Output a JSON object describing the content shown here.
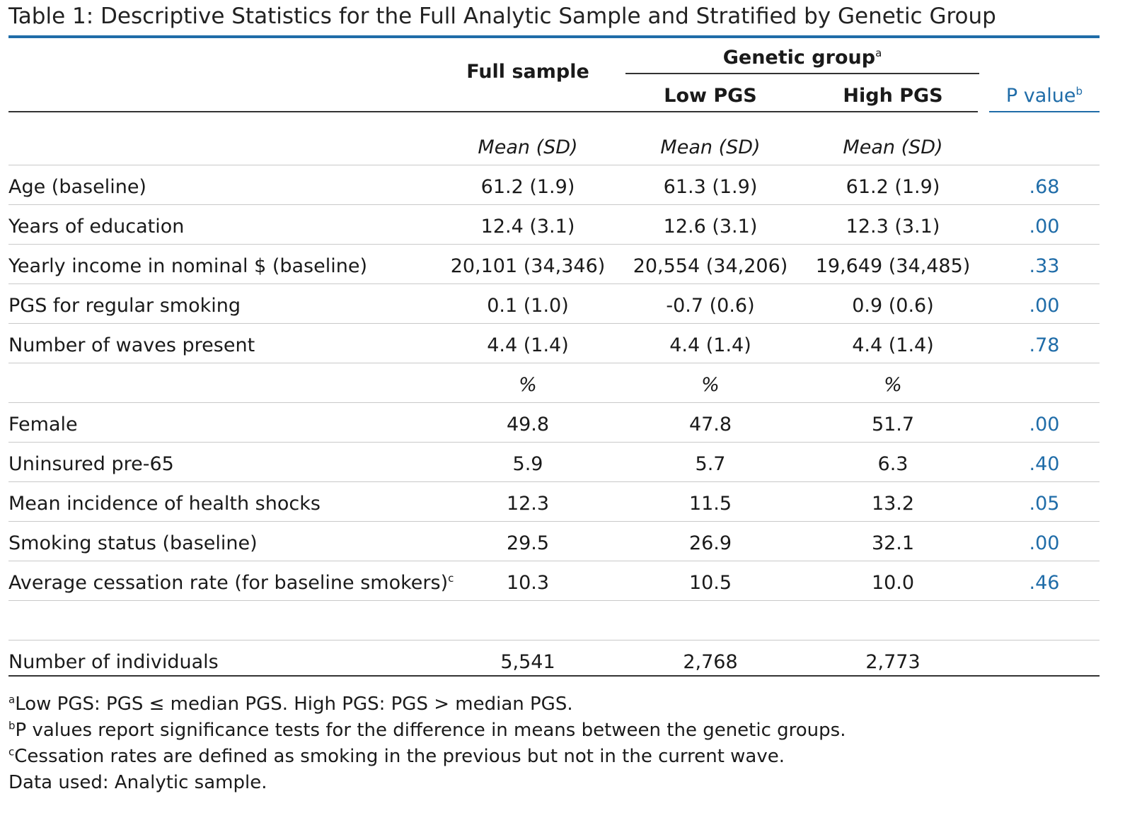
{
  "title": "Table 1: Descriptive Statistics for the Full Analytic Sample and Stratified by Genetic Group",
  "header": {
    "full_sample": "Full sample",
    "genetic_group": "Genetic group",
    "genetic_group_sup": "a",
    "low_pgs": "Low PGS",
    "high_pgs": "High PGS",
    "p_value": "P value",
    "p_value_sup": "b"
  },
  "subheaders": {
    "mean_sd": "Mean (SD)",
    "percent": "%"
  },
  "mean_rows": [
    {
      "label": "Age (baseline)",
      "full": "61.2 (1.9)",
      "low": "61.3 (1.9)",
      "high": "61.2 (1.9)",
      "p": ".68"
    },
    {
      "label": "Years of education",
      "full": "12.4 (3.1)",
      "low": "12.6 (3.1)",
      "high": "12.3 (3.1)",
      "p": ".00"
    },
    {
      "label": "Yearly income in nominal $ (baseline)",
      "full": "20,101 (34,346)",
      "low": "20,554 (34,206)",
      "high": "19,649 (34,485)",
      "p": ".33"
    },
    {
      "label": "PGS for regular smoking",
      "full": "0.1 (1.0)",
      "low": "-0.7 (0.6)",
      "high": "0.9 (0.6)",
      "p": ".00"
    },
    {
      "label": "Number of waves present",
      "full": "4.4 (1.4)",
      "low": "4.4 (1.4)",
      "high": "4.4 (1.4)",
      "p": ".78"
    }
  ],
  "pct_rows": [
    {
      "label": "Female",
      "full": "49.8",
      "low": "47.8",
      "high": "51.7",
      "p": ".00"
    },
    {
      "label": "Uninsured pre-65",
      "full": "5.9",
      "low": "5.7",
      "high": "6.3",
      "p": ".40"
    },
    {
      "label": "Mean incidence of health shocks",
      "full": "12.3",
      "low": "11.5",
      "high": "13.2",
      "p": ".05"
    },
    {
      "label": "Smoking status (baseline)",
      "full": "29.5",
      "low": "26.9",
      "high": "32.1",
      "p": ".00"
    },
    {
      "label": "Average cessation rate (for baseline smokers)",
      "label_sup": "c",
      "full": "10.3",
      "low": "10.5",
      "high": "10.0",
      "p": ".46"
    }
  ],
  "n_row": {
    "label": "Number of individuals",
    "full": "5,541",
    "low": "2,768",
    "high": "2,773"
  },
  "notes": [
    {
      "sup": "a",
      "text": "Low PGS: PGS ≤ median PGS. High PGS: PGS > median PGS."
    },
    {
      "sup": "b",
      "text": "P values report significance tests for the difference in means between the genetic groups."
    },
    {
      "sup": "c",
      "text": "Cessation rates are defined as smoking in the previous but not in the current wave."
    },
    {
      "sup": "",
      "text": "Data used: Analytic sample."
    }
  ],
  "colors": {
    "accent": "#1f6ca8",
    "text": "#1a1a1a",
    "rule": "#c9c9c9"
  }
}
